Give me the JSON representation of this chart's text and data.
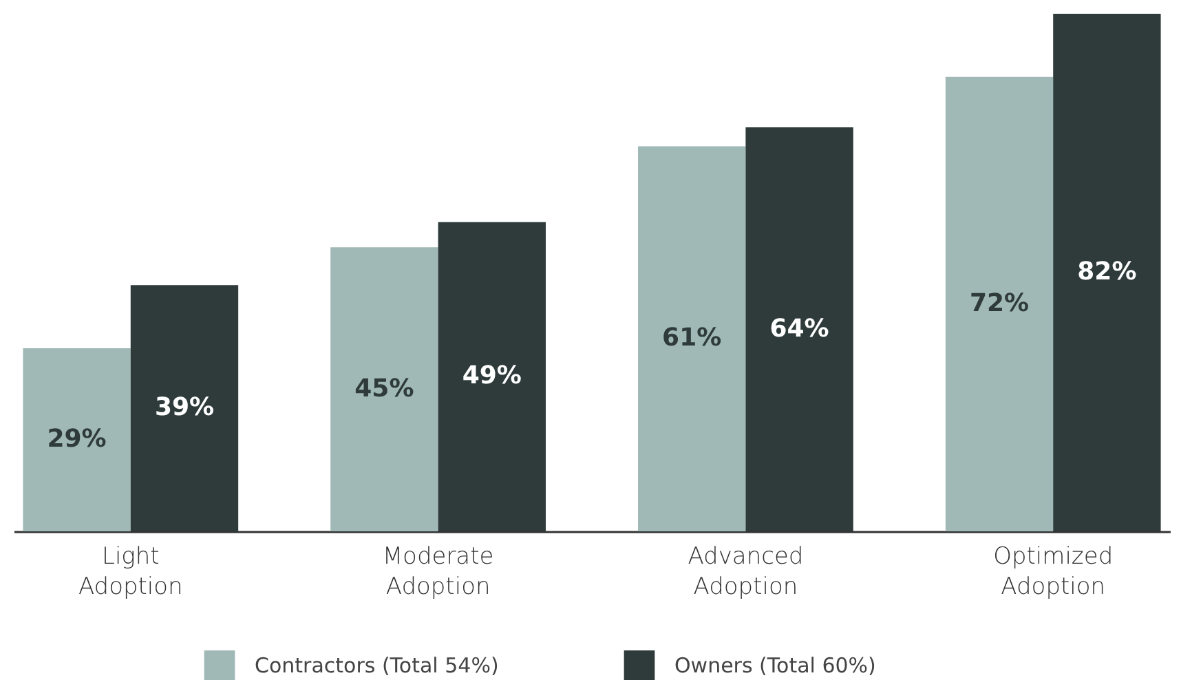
{
  "chart_data": {
    "type": "bar",
    "categories": [
      "Light Adoption",
      "Moderate Adoption",
      "Advanced Adoption",
      "Optimized Adoption"
    ],
    "series": [
      {
        "name": "Contractors (Total 54%)",
        "color": "#a0b9b6",
        "values": [
          29,
          45,
          61,
          72
        ],
        "value_labels": [
          "29%",
          "45%",
          "61%",
          "72%"
        ]
      },
      {
        "name": "Owners (Total 60%)",
        "color": "#2e3b3a",
        "values": [
          39,
          49,
          64,
          82
        ],
        "value_labels": [
          "39%",
          "49%",
          "64%",
          "82%"
        ]
      }
    ],
    "legend": "bottom",
    "grid": false
  }
}
